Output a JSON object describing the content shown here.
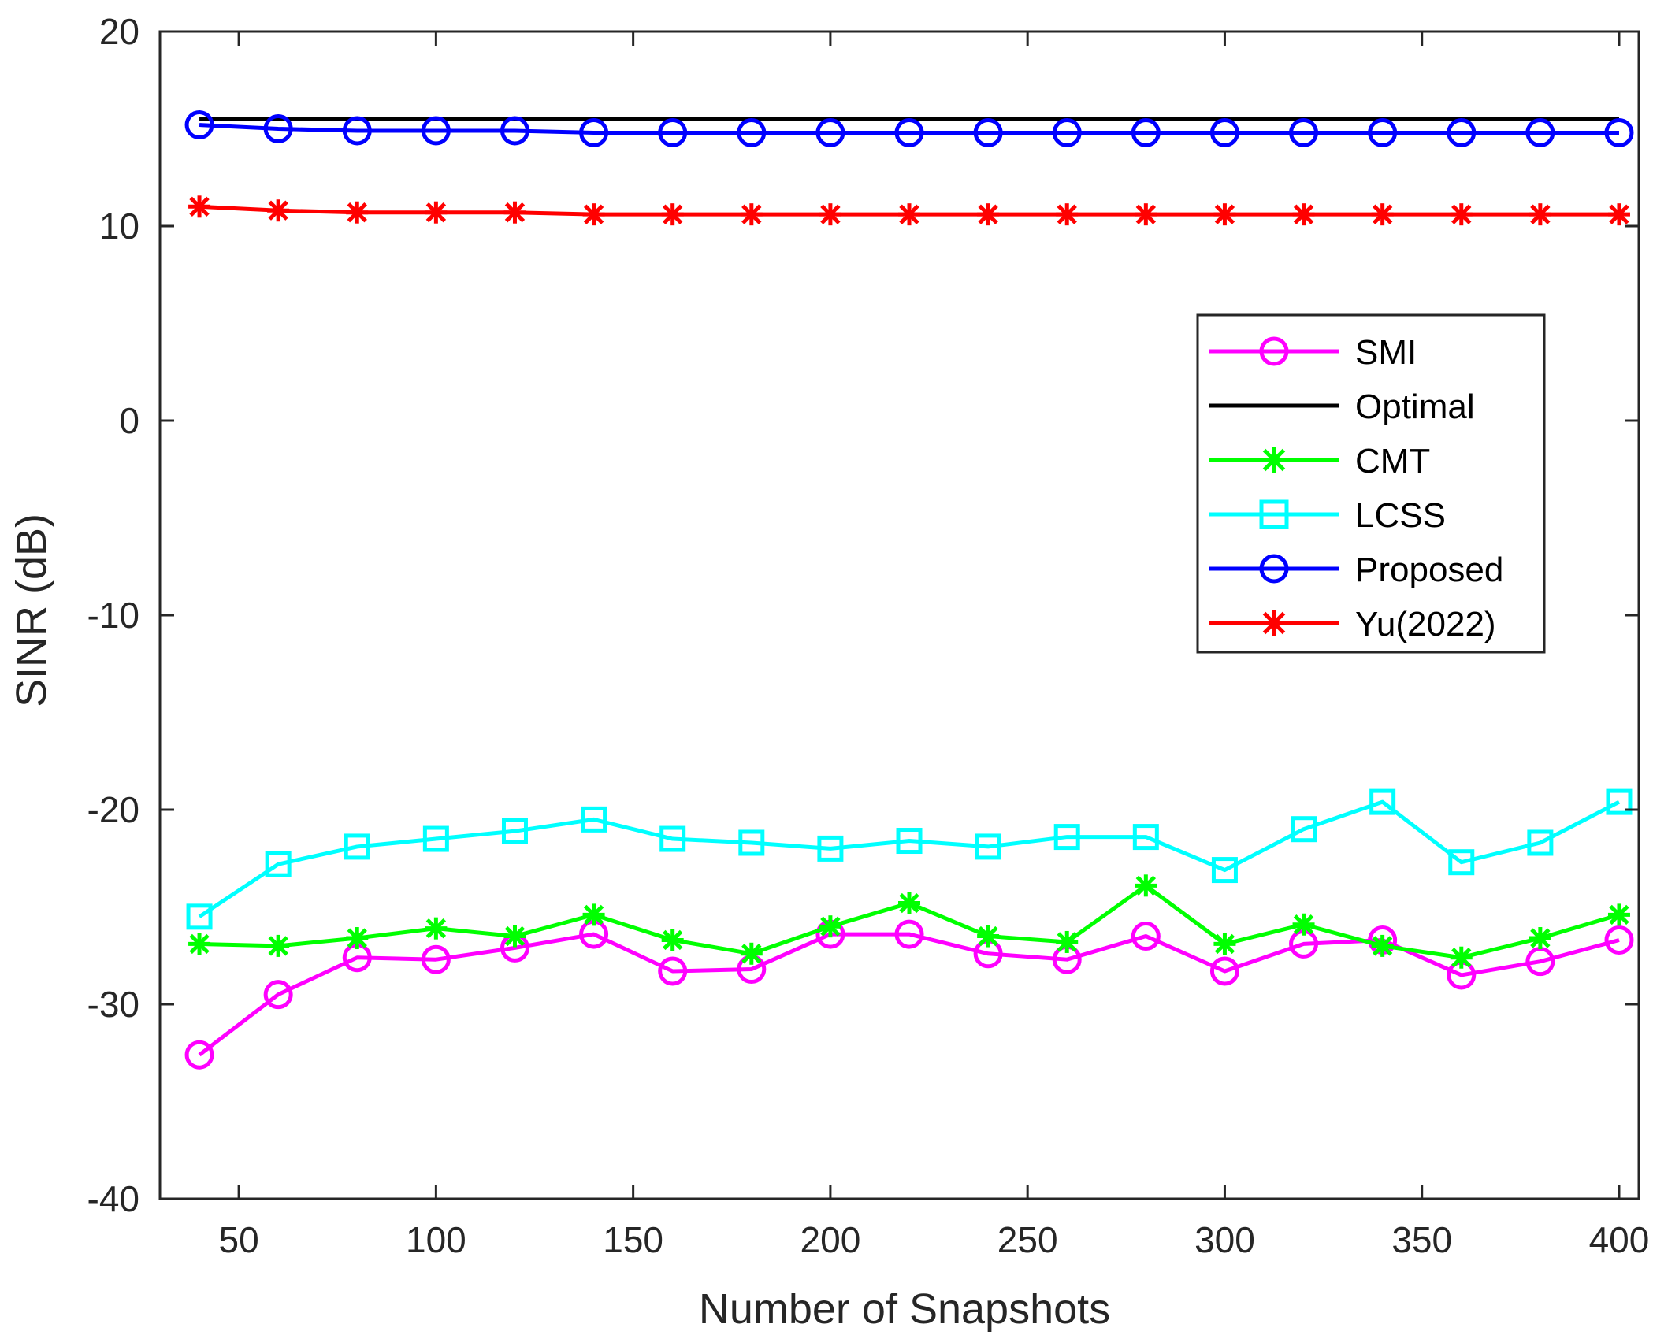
{
  "chart_data": {
    "type": "line",
    "title": "",
    "xlabel": "Number of Snapshots",
    "ylabel": "SINR (dB)",
    "xlim": [
      30,
      405
    ],
    "ylim": [
      -40,
      20
    ],
    "xticks": [
      50,
      100,
      150,
      200,
      250,
      300,
      350,
      400
    ],
    "yticks": [
      -40,
      -30,
      -20,
      -10,
      0,
      10,
      20
    ],
    "xtick_labels": [
      "50",
      "100",
      "150",
      "200",
      "250",
      "300",
      "350",
      "400"
    ],
    "ytick_labels": [
      "-40",
      "-30",
      "-20",
      "-10",
      "0",
      "10",
      "20"
    ],
    "grid": false,
    "legend_position": "right",
    "x": [
      40,
      60,
      80,
      100,
      120,
      140,
      160,
      180,
      200,
      220,
      240,
      260,
      280,
      300,
      320,
      340,
      360,
      380,
      400
    ],
    "series": [
      {
        "name": "SMI",
        "color": "#ff00ff",
        "marker": "circle",
        "values": [
          -32.6,
          -29.5,
          -27.6,
          -27.7,
          -27.1,
          -26.4,
          -28.3,
          -28.2,
          -26.4,
          -26.4,
          -27.4,
          -27.7,
          -26.5,
          -28.3,
          -26.9,
          -26.7,
          -28.5,
          -27.8,
          -26.7
        ]
      },
      {
        "name": "Optimal",
        "color": "#000000",
        "marker": "none",
        "values": [
          15.5,
          15.5,
          15.5,
          15.5,
          15.5,
          15.5,
          15.5,
          15.5,
          15.5,
          15.5,
          15.5,
          15.5,
          15.5,
          15.5,
          15.5,
          15.5,
          15.5,
          15.5,
          15.5
        ]
      },
      {
        "name": "CMT",
        "color": "#00ff00",
        "marker": "asterisk",
        "values": [
          -26.9,
          -27.0,
          -26.6,
          -26.1,
          -26.5,
          -25.4,
          -26.7,
          -27.4,
          -26.0,
          -24.8,
          -26.5,
          -26.8,
          -23.9,
          -26.9,
          -25.9,
          -27.0,
          -27.6,
          -26.6,
          -25.4
        ]
      },
      {
        "name": "LCSS",
        "color": "#00ffff",
        "marker": "square",
        "values": [
          -25.5,
          -22.8,
          -21.9,
          -21.5,
          -21.1,
          -20.5,
          -21.5,
          -21.7,
          -22.0,
          -21.6,
          -21.9,
          -21.4,
          -21.4,
          -23.1,
          -21.0,
          -19.6,
          -22.7,
          -21.7,
          -19.6
        ]
      },
      {
        "name": "Proposed",
        "color": "#0000ff",
        "marker": "circle",
        "values": [
          15.2,
          15.0,
          14.9,
          14.9,
          14.9,
          14.8,
          14.8,
          14.8,
          14.8,
          14.8,
          14.8,
          14.8,
          14.8,
          14.8,
          14.8,
          14.8,
          14.8,
          14.8,
          14.8
        ]
      },
      {
        "name": "Yu(2022)",
        "color": "#ff0000",
        "marker": "asterisk",
        "values": [
          11.0,
          10.8,
          10.7,
          10.7,
          10.7,
          10.6,
          10.6,
          10.6,
          10.6,
          10.6,
          10.6,
          10.6,
          10.6,
          10.6,
          10.6,
          10.6,
          10.6,
          10.6,
          10.6
        ]
      }
    ]
  }
}
